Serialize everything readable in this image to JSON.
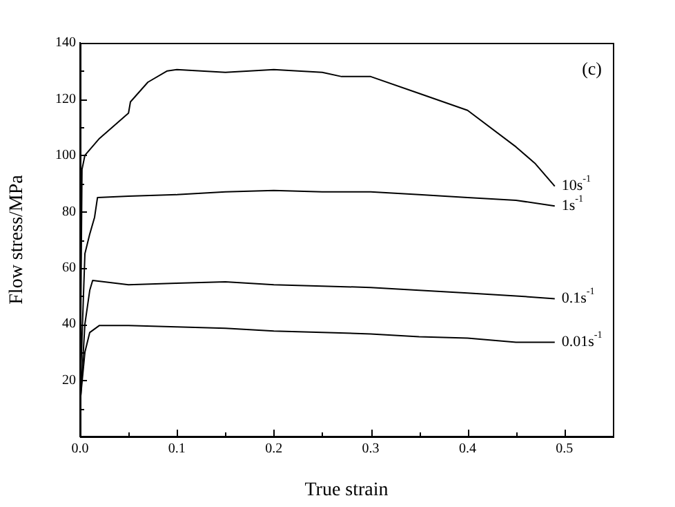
{
  "chart_data": {
    "type": "line",
    "xlabel": "True strain",
    "ylabel": "Flow stress/MPa",
    "annotations": [
      "(c)"
    ],
    "xlim": [
      0,
      0.55
    ],
    "xticks": [
      {
        "value": 0,
        "label": "0.0"
      },
      {
        "value": 0.05,
        "label": null
      },
      0.1,
      {
        "value": 0.15,
        "label": null
      },
      0.2,
      {
        "value": 0.25,
        "label": null
      },
      0.3,
      {
        "value": 0.35,
        "label": null
      },
      0.4,
      {
        "value": 0.45,
        "label": null
      },
      0.5
    ],
    "ylim": [
      0,
      140
    ],
    "yticks": [
      {
        "value": 10,
        "label": null
      },
      20,
      {
        "value": 30,
        "label": null
      },
      40,
      {
        "value": 50,
        "label": null
      },
      60,
      {
        "value": 70,
        "label": null
      },
      80,
      {
        "value": 90,
        "label": null
      },
      100,
      {
        "value": 110,
        "label": null
      },
      120,
      {
        "value": 130,
        "label": null
      },
      140
    ],
    "grid": false,
    "legend": false,
    "marker": "none",
    "line_style": "solid",
    "series": [
      {
        "name": "10s$^{-1}$",
        "color": "#000000",
        "x": [
          0,
          0.002,
          0.005,
          0.02,
          0.04,
          0.05,
          0.052,
          0.07,
          0.09,
          0.1,
          0.15,
          0.2,
          0.25,
          0.27,
          0.3,
          0.35,
          0.4,
          0.45,
          0.47,
          0.49
        ],
        "values": [
          12,
          95,
          100,
          106,
          112,
          115,
          119,
          126,
          130,
          130.5,
          129.5,
          130.5,
          129.5,
          128,
          128,
          122,
          116,
          103,
          97,
          89
        ]
      },
      {
        "name": "1s$^{-1}$",
        "color": "#000000",
        "x": [
          0,
          0.005,
          0.01,
          0.015,
          0.018,
          0.05,
          0.1,
          0.15,
          0.2,
          0.25,
          0.3,
          0.35,
          0.4,
          0.45,
          0.49
        ],
        "values": [
          15,
          65,
          72,
          78,
          85,
          85.5,
          86,
          87,
          87.5,
          87,
          87,
          86,
          85,
          84,
          82
        ]
      },
      {
        "name": "0.1s$^{-1}$",
        "color": "#000000",
        "x": [
          0,
          0.005,
          0.01,
          0.013,
          0.05,
          0.1,
          0.15,
          0.2,
          0.25,
          0.3,
          0.35,
          0.4,
          0.45,
          0.49
        ],
        "values": [
          10,
          40,
          52,
          55.5,
          54,
          54.5,
          55,
          54,
          53.5,
          53,
          52,
          51,
          50,
          49
        ]
      },
      {
        "name": "0.01s$^{-1}$",
        "color": "#000000",
        "x": [
          0,
          0.005,
          0.01,
          0.02,
          0.05,
          0.1,
          0.15,
          0.2,
          0.25,
          0.3,
          0.35,
          0.4,
          0.45,
          0.49
        ],
        "values": [
          12,
          30,
          37,
          39.5,
          39.5,
          39,
          38.5,
          37.5,
          37,
          36.5,
          35.5,
          35,
          33.5,
          33.5
        ]
      }
    ]
  }
}
